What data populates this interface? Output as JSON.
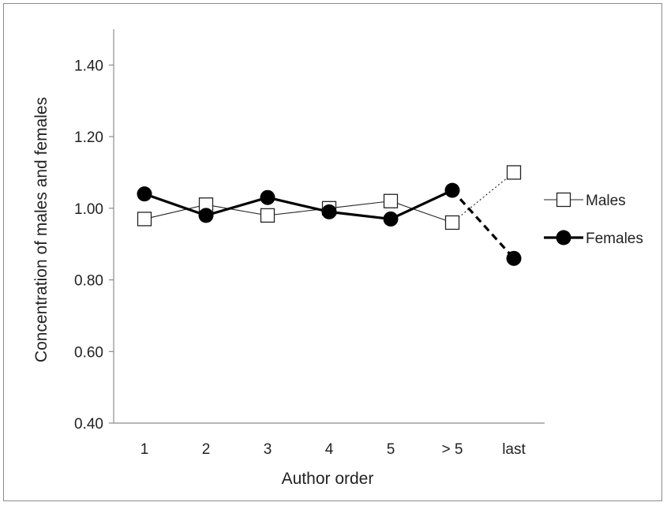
{
  "chart_data": {
    "type": "line",
    "title": "",
    "xlabel": "Author order",
    "ylabel": "Concentration of males and females",
    "categories": [
      "1",
      "2",
      "3",
      "4",
      "5",
      "> 5",
      "last"
    ],
    "y_ticks": [
      "0.40",
      "0.60",
      "0.80",
      "1.00",
      "1.20",
      "1.40"
    ],
    "ylim": [
      0.4,
      1.5
    ],
    "grid": false,
    "legend_position": "right",
    "series": [
      {
        "name": "Males",
        "marker": "open-square",
        "line": "thin-solid",
        "last_segment": "dotted",
        "color": "#222222",
        "values": [
          0.97,
          1.01,
          0.98,
          1.0,
          1.02,
          0.96,
          1.1
        ]
      },
      {
        "name": "Females",
        "marker": "filled-circle",
        "line": "thick-solid",
        "last_segment": "dashed",
        "color": "#000000",
        "values": [
          1.04,
          0.98,
          1.03,
          0.99,
          0.97,
          1.05,
          0.86
        ]
      }
    ]
  }
}
